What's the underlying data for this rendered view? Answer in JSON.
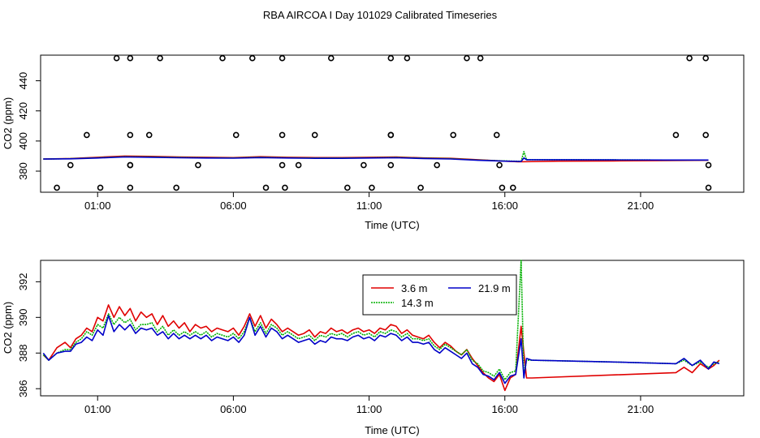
{
  "title": "RBA AIRCOA I  Day 101029  Calibrated Timeseries",
  "colors": {
    "3.6 m": "#e00000",
    "14.3 m": "#00b000",
    "21.9 m": "#0000c8",
    "axes": "#000000",
    "circles": "#000000"
  },
  "chart_data": [
    {
      "type": "line",
      "xlabel": "Time (UTC)",
      "ylabel": "CO2 (ppm)",
      "x_unit": "hours UTC",
      "xlim": [
        -1.1,
        24.8
      ],
      "ylim": [
        366,
        457
      ],
      "xticks": [
        1,
        6,
        11,
        16,
        21
      ],
      "xtick_labels": [
        "01:00",
        "06:00",
        "11:00",
        "16:00",
        "21:00"
      ],
      "yticks": [
        380,
        400,
        420,
        440
      ],
      "ytick_labels": [
        "380",
        "400",
        "420",
        "440"
      ],
      "grid": false,
      "legend": "none",
      "outlier_points": {
        "marker": "open-circle",
        "x": [
          -0.5,
          0.0,
          0.6,
          1.1,
          1.7,
          2.2,
          2.2,
          2.2,
          2.2,
          2.2,
          2.9,
          3.3,
          3.9,
          4.7,
          5.6,
          6.1,
          6.7,
          7.2,
          7.8,
          7.8,
          7.8,
          7.9,
          8.4,
          9.0,
          9.6,
          10.2,
          10.8,
          11.1,
          11.8,
          11.8,
          11.8,
          11.8,
          12.4,
          12.9,
          13.5,
          14.1,
          14.6,
          15.1,
          15.7,
          15.8,
          15.9,
          16.3,
          22.3,
          22.8,
          23.4,
          23.4,
          23.5,
          23.5
        ],
        "y": [
          369,
          384,
          404,
          369,
          455,
          369,
          384,
          404,
          455,
          384,
          404,
          455,
          369,
          384,
          455,
          404,
          455,
          369,
          455,
          404,
          384,
          369,
          384,
          404,
          455,
          369,
          384,
          369,
          404,
          455,
          384,
          404,
          455,
          369,
          384,
          404,
          455,
          455,
          404,
          384,
          369,
          369,
          404,
          455,
          455,
          404,
          384,
          369
        ]
      },
      "series": [
        {
          "name": "3.6 m",
          "x": [
            -1.0,
            0.0,
            1.0,
            2.0,
            3.0,
            4.0,
            5.0,
            6.0,
            7.0,
            8.0,
            9.0,
            10.0,
            11.0,
            12.0,
            13.0,
            14.0,
            15.0,
            16.0,
            16.5,
            18.0,
            20.0,
            22.0,
            23.5
          ],
          "y": [
            388.0,
            388.4,
            389.2,
            390.0,
            389.8,
            389.4,
            389.2,
            389.0,
            389.6,
            389.2,
            389.0,
            389.0,
            389.2,
            389.4,
            388.8,
            388.5,
            387.6,
            386.6,
            386.2,
            386.6,
            386.8,
            387.0,
            387.2
          ]
        },
        {
          "name": "14.3 m",
          "x": [
            -1.0,
            0.0,
            1.0,
            2.0,
            3.0,
            4.0,
            5.0,
            6.0,
            7.0,
            8.0,
            9.0,
            10.0,
            11.0,
            12.0,
            13.0,
            14.0,
            15.0,
            16.0,
            16.6,
            16.7,
            16.8,
            18.0,
            20.0,
            22.0,
            23.5
          ],
          "y": [
            388.0,
            388.3,
            388.9,
            389.6,
            389.4,
            389.1,
            388.9,
            388.8,
            389.2,
            388.9,
            388.7,
            388.7,
            388.9,
            389.1,
            388.6,
            388.3,
            387.4,
            386.8,
            386.5,
            393.0,
            387.6,
            387.6,
            387.5,
            387.4,
            387.4
          ]
        },
        {
          "name": "21.9 m",
          "x": [
            -1.0,
            0.0,
            1.0,
            2.0,
            3.0,
            4.0,
            5.0,
            6.0,
            7.0,
            8.0,
            9.0,
            10.0,
            11.0,
            12.0,
            13.0,
            14.0,
            15.0,
            16.0,
            16.6,
            16.7,
            16.8,
            18.0,
            20.0,
            22.0,
            23.5
          ],
          "y": [
            388.0,
            388.2,
            388.7,
            389.4,
            389.2,
            388.9,
            388.7,
            388.6,
            389.0,
            388.7,
            388.5,
            388.5,
            388.7,
            388.9,
            388.4,
            388.1,
            387.2,
            386.6,
            386.4,
            388.8,
            387.6,
            387.6,
            387.5,
            387.4,
            387.4
          ]
        }
      ]
    },
    {
      "type": "line",
      "xlabel": "Time (UTC)",
      "ylabel": "CO2 (ppm)",
      "x_unit": "hours UTC",
      "xlim": [
        -1.1,
        24.8
      ],
      "ylim": [
        385.6,
        393.2
      ],
      "xticks": [
        1,
        6,
        11,
        16,
        21
      ],
      "xtick_labels": [
        "01:00",
        "06:00",
        "11:00",
        "16:00",
        "21:00"
      ],
      "yticks": [
        386,
        388,
        390,
        392
      ],
      "ytick_labels": [
        "386",
        "388",
        "390",
        "392"
      ],
      "grid": false,
      "legend": "top-center",
      "legend_entries": [
        "3.6 m",
        "21.9 m",
        "14.3 m"
      ],
      "series": [
        {
          "name": "3.6 m",
          "x": [
            -1.0,
            -0.8,
            -0.5,
            -0.2,
            0.0,
            0.2,
            0.4,
            0.6,
            0.8,
            1.0,
            1.2,
            1.4,
            1.6,
            1.8,
            2.0,
            2.2,
            2.4,
            2.6,
            2.8,
            3.0,
            3.2,
            3.4,
            3.6,
            3.8,
            4.0,
            4.2,
            4.4,
            4.6,
            4.8,
            5.0,
            5.2,
            5.4,
            5.6,
            5.8,
            6.0,
            6.2,
            6.4,
            6.6,
            6.8,
            7.0,
            7.2,
            7.4,
            7.6,
            7.8,
            8.0,
            8.2,
            8.4,
            8.6,
            8.8,
            9.0,
            9.2,
            9.4,
            9.6,
            9.8,
            10.0,
            10.2,
            10.4,
            10.6,
            10.8,
            11.0,
            11.2,
            11.4,
            11.6,
            11.8,
            12.0,
            12.2,
            12.4,
            12.6,
            12.8,
            13.0,
            13.2,
            13.4,
            13.6,
            13.8,
            14.0,
            14.2,
            14.4,
            14.6,
            14.8,
            15.0,
            15.2,
            15.4,
            15.6,
            15.8,
            16.0,
            16.2,
            16.4,
            16.6,
            16.8,
            17.0,
            22.3,
            22.6,
            22.9,
            23.2,
            23.5,
            23.7,
            23.9
          ],
          "y": [
            387.9,
            387.6,
            388.3,
            388.6,
            388.3,
            388.8,
            389.0,
            389.4,
            389.2,
            390.0,
            389.8,
            390.7,
            390.0,
            390.6,
            390.1,
            390.5,
            389.8,
            390.3,
            390.0,
            390.2,
            389.6,
            390.1,
            389.5,
            389.8,
            389.4,
            389.7,
            389.2,
            389.6,
            389.4,
            389.5,
            389.2,
            389.4,
            389.3,
            389.2,
            389.4,
            389.0,
            389.5,
            390.2,
            389.5,
            390.1,
            389.4,
            389.9,
            389.6,
            389.2,
            389.4,
            389.2,
            389.0,
            389.1,
            389.3,
            388.9,
            389.2,
            389.1,
            389.4,
            389.2,
            389.3,
            389.1,
            389.3,
            389.4,
            389.2,
            389.3,
            389.1,
            389.4,
            389.3,
            389.6,
            389.5,
            389.1,
            389.3,
            389.0,
            388.9,
            388.8,
            389.0,
            388.6,
            388.3,
            388.6,
            388.4,
            388.1,
            387.9,
            388.2,
            387.7,
            387.3,
            386.9,
            386.6,
            386.4,
            386.8,
            385.9,
            386.6,
            386.8,
            389.5,
            386.6,
            386.6,
            386.9,
            387.2,
            386.9,
            387.4,
            387.1,
            387.3,
            387.6
          ]
        },
        {
          "name": "14.3 m",
          "x": [
            -1.0,
            -0.8,
            -0.5,
            -0.2,
            0.0,
            0.2,
            0.4,
            0.6,
            0.8,
            1.0,
            1.2,
            1.4,
            1.6,
            1.8,
            2.0,
            2.2,
            2.4,
            2.6,
            2.8,
            3.0,
            3.2,
            3.4,
            3.6,
            3.8,
            4.0,
            4.2,
            4.4,
            4.6,
            4.8,
            5.0,
            5.2,
            5.4,
            5.6,
            5.8,
            6.0,
            6.2,
            6.4,
            6.6,
            6.8,
            7.0,
            7.2,
            7.4,
            7.6,
            7.8,
            8.0,
            8.2,
            8.4,
            8.6,
            8.8,
            9.0,
            9.2,
            9.4,
            9.6,
            9.8,
            10.0,
            10.2,
            10.4,
            10.6,
            10.8,
            11.0,
            11.2,
            11.4,
            11.6,
            11.8,
            12.0,
            12.2,
            12.4,
            12.6,
            12.8,
            13.0,
            13.2,
            13.4,
            13.6,
            13.8,
            14.0,
            14.2,
            14.4,
            14.6,
            14.8,
            15.0,
            15.2,
            15.4,
            15.6,
            15.8,
            16.0,
            16.2,
            16.4,
            16.6,
            16.7,
            16.8,
            17.0,
            20.0,
            22.3,
            22.6,
            22.9,
            23.2,
            23.5,
            23.7,
            23.9
          ],
          "y": [
            387.9,
            387.6,
            388.0,
            388.2,
            388.2,
            388.6,
            388.8,
            389.2,
            389.0,
            389.6,
            389.4,
            390.2,
            389.6,
            390.0,
            389.7,
            389.9,
            389.3,
            389.6,
            389.6,
            389.7,
            389.2,
            389.5,
            389.0,
            389.3,
            389.0,
            389.2,
            389.0,
            389.2,
            389.0,
            389.2,
            388.9,
            389.1,
            389.0,
            388.9,
            389.1,
            388.8,
            389.2,
            390.0,
            389.2,
            389.7,
            389.1,
            389.6,
            389.4,
            389.0,
            389.2,
            389.0,
            388.8,
            388.9,
            389.0,
            388.7,
            389.0,
            388.9,
            389.1,
            389.0,
            389.1,
            388.9,
            389.1,
            389.2,
            389.0,
            389.1,
            388.9,
            389.2,
            389.1,
            389.3,
            389.2,
            388.9,
            389.1,
            388.8,
            388.8,
            388.7,
            388.8,
            388.4,
            388.2,
            388.5,
            388.3,
            388.1,
            387.9,
            388.2,
            387.6,
            387.4,
            387.0,
            386.9,
            386.7,
            387.1,
            386.5,
            386.9,
            387.0,
            393.2,
            386.7,
            387.6,
            387.6,
            387.5,
            387.4,
            387.6,
            387.3,
            387.5,
            387.2,
            387.4,
            387.5
          ]
        },
        {
          "name": "21.9 m",
          "x": [
            -1.0,
            -0.8,
            -0.5,
            -0.2,
            0.0,
            0.2,
            0.4,
            0.6,
            0.8,
            1.0,
            1.2,
            1.4,
            1.6,
            1.8,
            2.0,
            2.2,
            2.4,
            2.6,
            2.8,
            3.0,
            3.2,
            3.4,
            3.6,
            3.8,
            4.0,
            4.2,
            4.4,
            4.6,
            4.8,
            5.0,
            5.2,
            5.4,
            5.6,
            5.8,
            6.0,
            6.2,
            6.4,
            6.6,
            6.8,
            7.0,
            7.2,
            7.4,
            7.6,
            7.8,
            8.0,
            8.2,
            8.4,
            8.6,
            8.8,
            9.0,
            9.2,
            9.4,
            9.6,
            9.8,
            10.0,
            10.2,
            10.4,
            10.6,
            10.8,
            11.0,
            11.2,
            11.4,
            11.6,
            11.8,
            12.0,
            12.2,
            12.4,
            12.6,
            12.8,
            13.0,
            13.2,
            13.4,
            13.6,
            13.8,
            14.0,
            14.2,
            14.4,
            14.6,
            14.8,
            15.0,
            15.2,
            15.4,
            15.6,
            15.8,
            16.0,
            16.2,
            16.4,
            16.6,
            16.7,
            16.8,
            17.0,
            20.0,
            22.3,
            22.6,
            22.9,
            23.2,
            23.5,
            23.7,
            23.9
          ],
          "y": [
            388.0,
            387.6,
            388.0,
            388.1,
            388.1,
            388.5,
            388.6,
            388.9,
            388.7,
            389.3,
            389.0,
            390.1,
            389.2,
            389.6,
            389.3,
            389.6,
            389.1,
            389.4,
            389.3,
            389.4,
            389.0,
            389.2,
            388.8,
            389.1,
            388.8,
            389.0,
            388.8,
            389.0,
            388.8,
            389.0,
            388.7,
            388.9,
            388.8,
            388.7,
            388.9,
            388.6,
            389.0,
            390.0,
            389.0,
            389.5,
            388.9,
            389.4,
            389.2,
            388.8,
            389.0,
            388.8,
            388.6,
            388.7,
            388.8,
            388.5,
            388.7,
            388.6,
            388.9,
            388.8,
            388.8,
            388.7,
            388.9,
            389.0,
            388.8,
            388.9,
            388.7,
            389.0,
            388.9,
            389.1,
            389.0,
            388.7,
            388.9,
            388.6,
            388.6,
            388.5,
            388.6,
            388.2,
            388.0,
            388.3,
            388.1,
            387.9,
            387.7,
            388.0,
            387.4,
            387.2,
            386.8,
            386.7,
            386.5,
            386.9,
            386.3,
            386.7,
            386.8,
            388.8,
            386.6,
            387.7,
            387.6,
            387.5,
            387.4,
            387.7,
            387.3,
            387.6,
            387.1,
            387.5,
            387.4
          ]
        }
      ]
    }
  ]
}
